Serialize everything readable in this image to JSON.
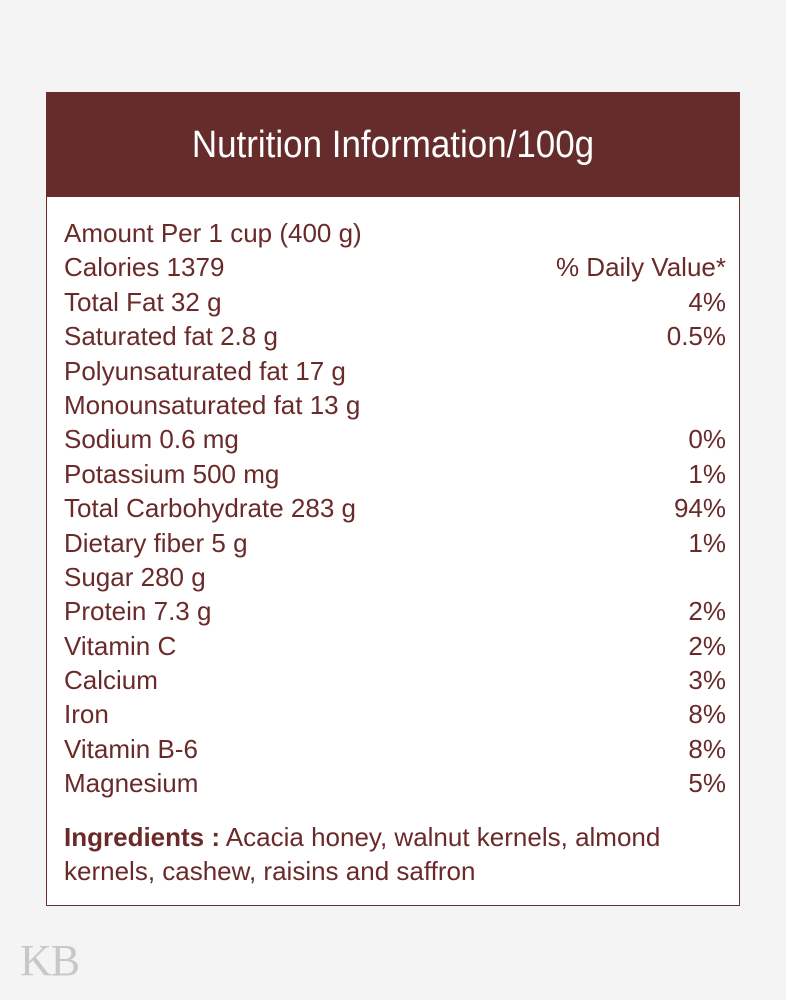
{
  "title": "Nutrition Information/100g",
  "rows": [
    {
      "label": "Amount Per 1 cup (400 g)",
      "value": ""
    },
    {
      "label": "Calories 1379",
      "value": "% Daily Value*"
    },
    {
      "label": "Total Fat 32 g",
      "value": "4%"
    },
    {
      "label": "Saturated fat 2.8 g",
      "value": "0.5%"
    },
    {
      "label": "Polyunsaturated fat 17 g",
      "value": ""
    },
    {
      "label": "Monounsaturated fat 13 g",
      "value": ""
    },
    {
      "label": "Sodium 0.6 mg",
      "value": "0%"
    },
    {
      "label": "Potassium 500 mg",
      "value": "1%"
    },
    {
      "label": "Total Carbohydrate 283 g",
      "value": "94%"
    },
    {
      "label": "Dietary fiber 5 g",
      "value": "1%"
    },
    {
      "label": "Sugar 280 g",
      "value": ""
    },
    {
      "label": "Protein 7.3 g",
      "value": "2%"
    },
    {
      "label": "Vitamin C",
      "value": "2%"
    },
    {
      "label": "Calcium",
      "value": "3%"
    },
    {
      "label": "Iron",
      "value": "8%"
    },
    {
      "label": "Vitamin B-6",
      "value": "8%"
    },
    {
      "label": "Magnesium",
      "value": "5%"
    }
  ],
  "ingredients": {
    "label": "Ingredients :",
    "text": " Acacia honey, walnut kernels, almond kernels, cashew, raisins and saffron"
  },
  "logo": "KB",
  "colors": {
    "header_bg": "#662c2c",
    "text": "#6b2a2a",
    "background": "#f4f4f4"
  }
}
